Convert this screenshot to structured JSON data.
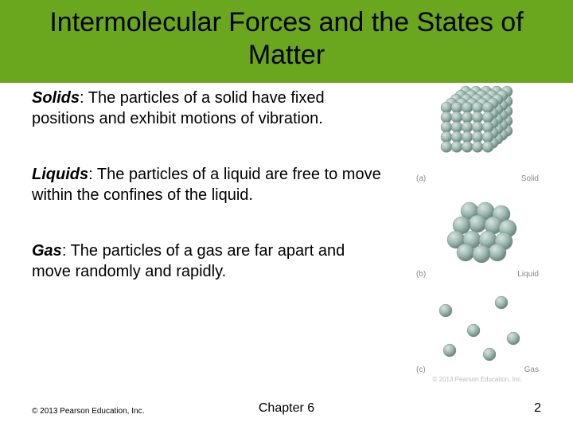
{
  "title": "Intermolecular Forces and the States of Matter",
  "title_bg": "#6aa61e",
  "sections": [
    {
      "term": "Solids",
      "body": ": The particles of a solid have fixed positions and exhibit motions of vibration."
    },
    {
      "term": "Liquids",
      "body": ": The particles of a liquid are free to move within the confines of the liquid."
    },
    {
      "term": "Gas",
      "body": ": The particles of a gas are far apart and move randomly and rapidly."
    }
  ],
  "figures": [
    {
      "tag": "(a)",
      "label": "Solid"
    },
    {
      "tag": "(b)",
      "label": "Liquid"
    },
    {
      "tag": "(c)",
      "label": "Gas"
    }
  ],
  "sphere_color": "#9fb9b1",
  "sphere_highlight": "#d8e4df",
  "sphere_shadow": "#6f8c85",
  "copyright": "© 2013 Pearson Education, Inc.",
  "chapter": "Chapter 6",
  "page": "2",
  "small_copy": "© 2013 Pearson Education, Inc."
}
